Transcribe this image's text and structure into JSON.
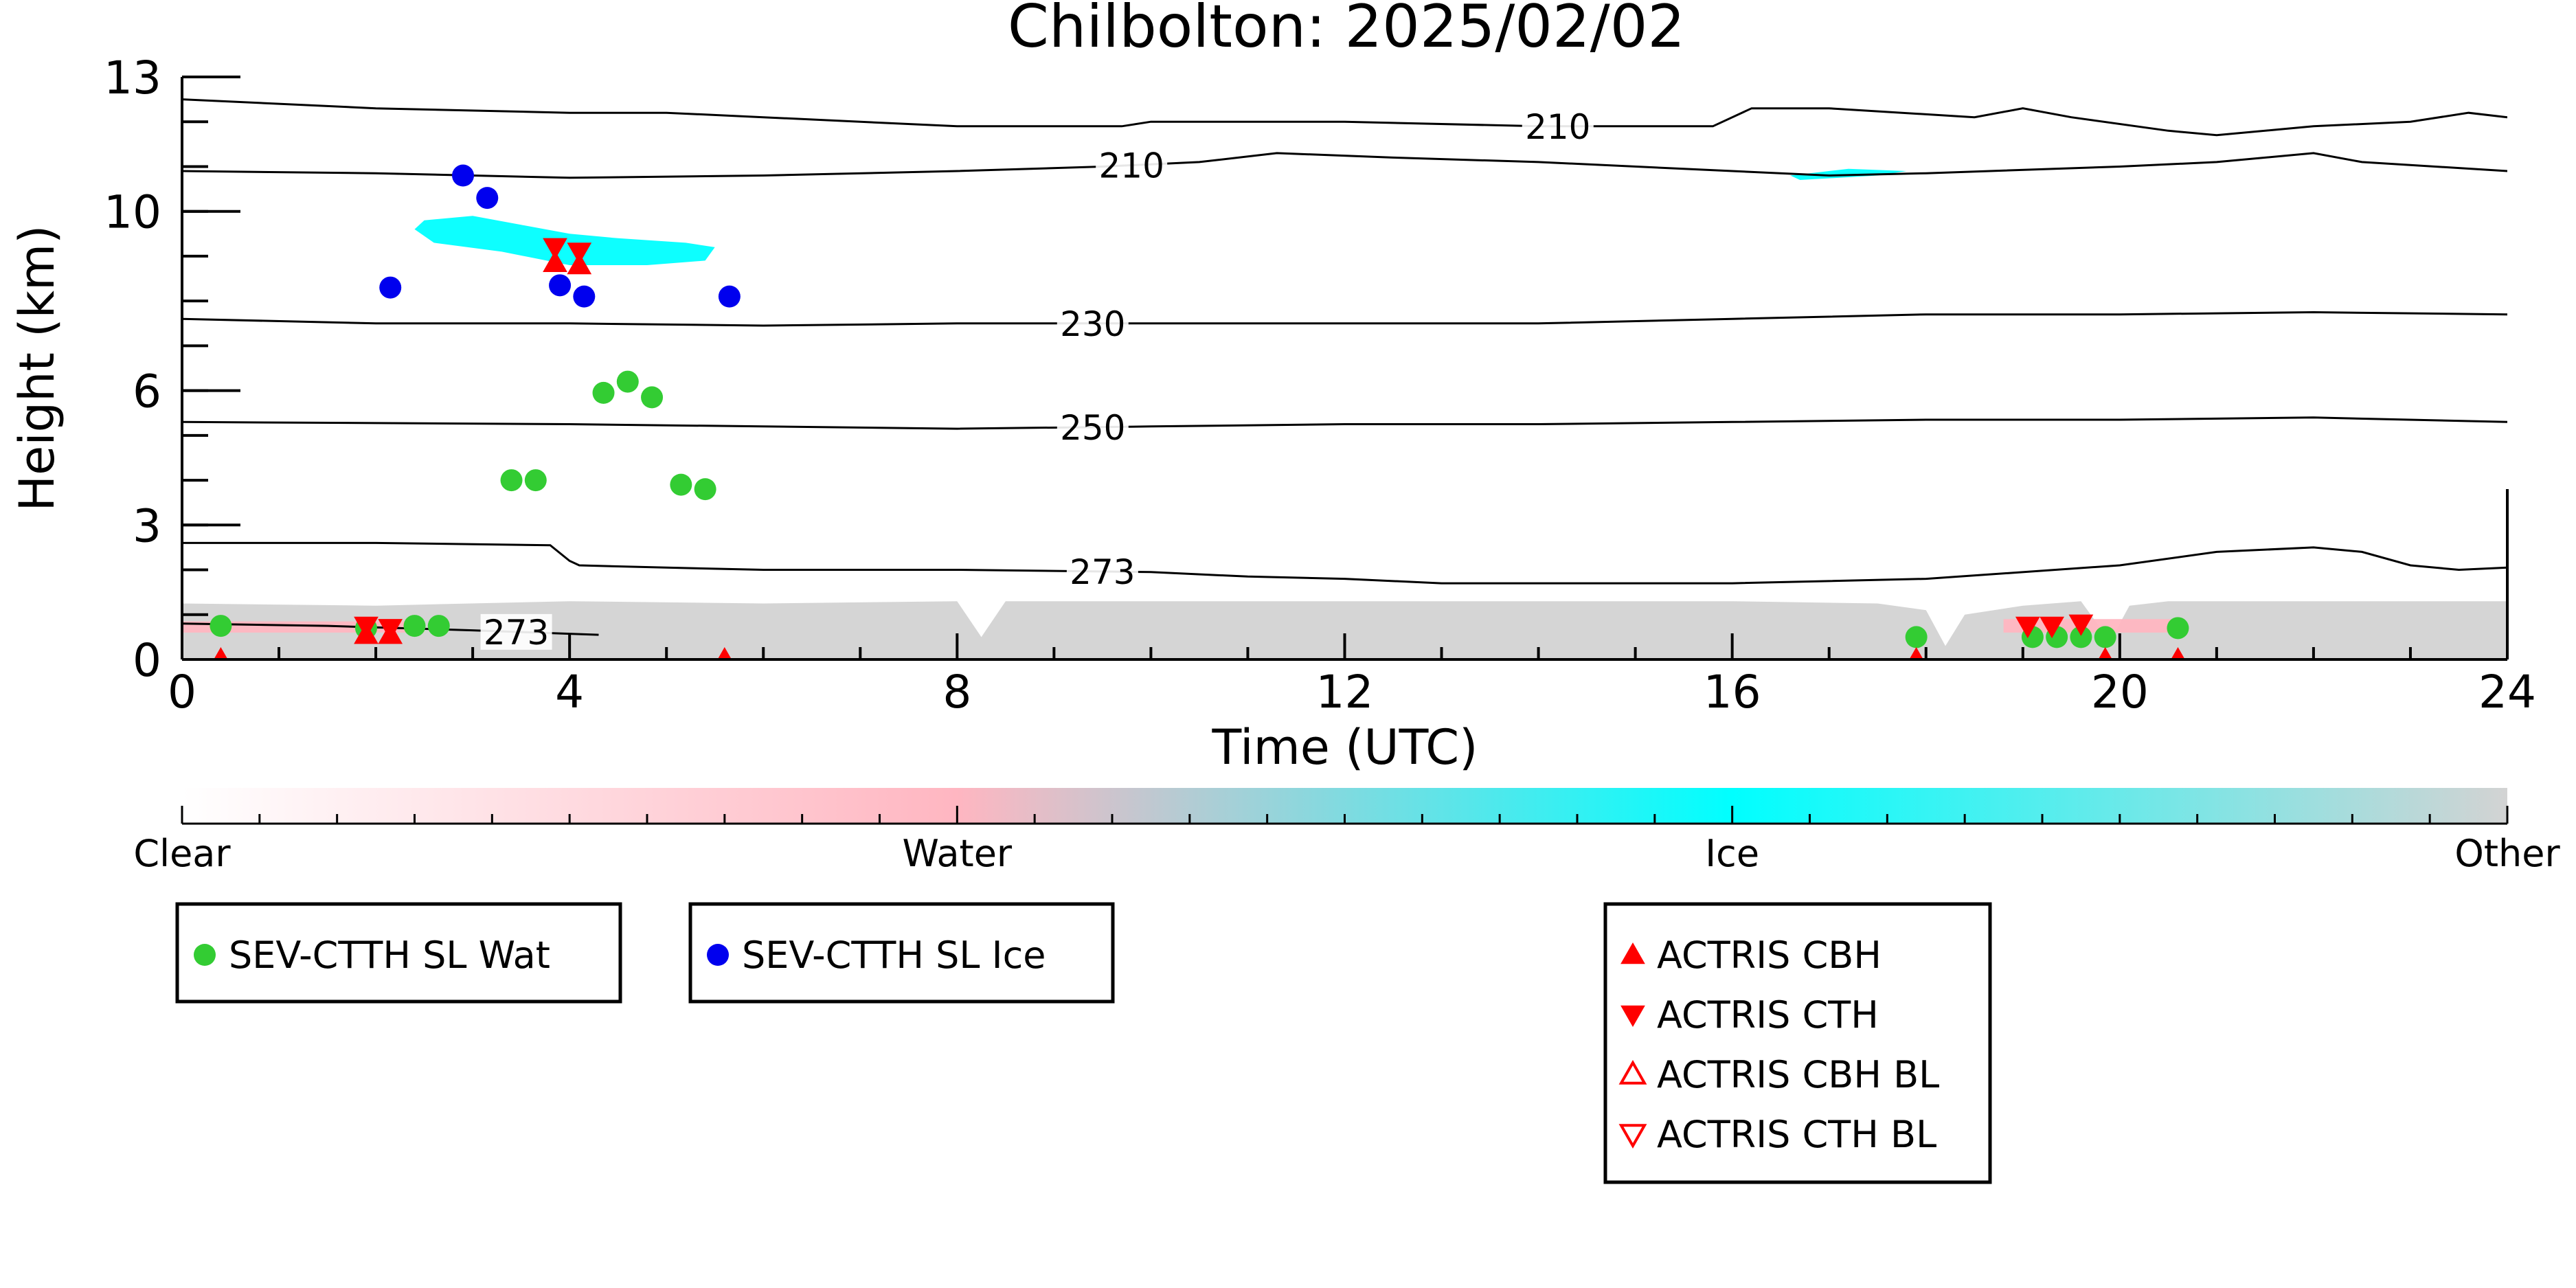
{
  "chart_data": {
    "type": "scatter",
    "title": "Chilbolton: 2025/02/02",
    "xlabel": "Time (UTC)",
    "ylabel": "Height (km)",
    "xlim": [
      0,
      24
    ],
    "ylim": [
      0,
      13
    ],
    "x_ticks": [
      "0",
      "4",
      "8",
      "12",
      "16",
      "20",
      "24"
    ],
    "y_ticks": [
      "0",
      "3",
      "6",
      "10",
      "13"
    ],
    "grid": false,
    "colorbar": {
      "labels": [
        "Clear",
        "Water",
        "Ice",
        "Other"
      ],
      "colors": [
        "#ffffff",
        "#ffb6c1",
        "#00ffff",
        "#d3d3d3"
      ]
    },
    "temperature_contours": [
      {
        "label": "210",
        "label_x": 14.2,
        "points": [
          [
            0,
            12.5
          ],
          [
            2,
            12.3
          ],
          [
            4,
            12.2
          ],
          [
            5,
            12.2
          ],
          [
            6,
            12.1
          ],
          [
            8,
            11.9
          ],
          [
            9.7,
            11.9
          ],
          [
            10,
            12.0
          ],
          [
            12,
            12.0
          ],
          [
            14,
            11.9
          ],
          [
            15.8,
            11.9
          ],
          [
            16.2,
            12.3
          ],
          [
            17,
            12.3
          ],
          [
            18.5,
            12.1
          ],
          [
            19,
            12.3
          ],
          [
            19.5,
            12.1
          ],
          [
            20.5,
            11.8
          ],
          [
            21,
            11.7
          ],
          [
            22,
            11.9
          ],
          [
            23,
            12.0
          ],
          [
            23.6,
            12.2
          ],
          [
            24,
            12.1
          ]
        ]
      },
      {
        "label": "210",
        "label_x": 9.8,
        "points": [
          [
            0,
            10.9
          ],
          [
            2,
            10.85
          ],
          [
            4,
            10.75
          ],
          [
            6,
            10.8
          ],
          [
            8,
            10.9
          ],
          [
            9.5,
            11.0
          ],
          [
            10.5,
            11.1
          ],
          [
            11.3,
            11.3
          ],
          [
            12.5,
            11.2
          ],
          [
            14,
            11.1
          ],
          [
            16,
            10.9
          ],
          [
            17,
            10.8
          ],
          [
            18,
            10.85
          ],
          [
            20,
            11.0
          ],
          [
            21,
            11.1
          ],
          [
            22,
            11.3
          ],
          [
            22.5,
            11.1
          ],
          [
            24,
            10.9
          ]
        ]
      },
      {
        "label": "230",
        "label_x": 9.4,
        "points": [
          [
            0,
            7.6
          ],
          [
            2,
            7.5
          ],
          [
            4,
            7.5
          ],
          [
            6,
            7.45
          ],
          [
            8,
            7.5
          ],
          [
            10,
            7.5
          ],
          [
            12,
            7.5
          ],
          [
            14,
            7.5
          ],
          [
            16,
            7.6
          ],
          [
            18,
            7.7
          ],
          [
            20,
            7.7
          ],
          [
            22,
            7.75
          ],
          [
            24,
            7.7
          ]
        ]
      },
      {
        "label": "250",
        "label_x": 9.4,
        "points": [
          [
            0,
            5.3
          ],
          [
            4,
            5.25
          ],
          [
            6,
            5.2
          ],
          [
            8,
            5.15
          ],
          [
            10,
            5.2
          ],
          [
            12,
            5.25
          ],
          [
            14,
            5.25
          ],
          [
            16,
            5.3
          ],
          [
            18,
            5.35
          ],
          [
            20,
            5.35
          ],
          [
            22,
            5.4
          ],
          [
            24,
            5.3
          ]
        ]
      },
      {
        "label": "273",
        "label_x": 9.5,
        "points": [
          [
            0,
            2.6
          ],
          [
            2,
            2.6
          ],
          [
            3.8,
            2.55
          ],
          [
            4.0,
            2.2
          ],
          [
            4.1,
            2.1
          ],
          [
            5,
            2.05
          ],
          [
            6,
            2.0
          ],
          [
            8,
            2.0
          ],
          [
            10,
            1.95
          ],
          [
            11,
            1.85
          ],
          [
            12,
            1.8
          ],
          [
            13,
            1.7
          ],
          [
            14,
            1.7
          ],
          [
            16,
            1.7
          ],
          [
            18,
            1.8
          ],
          [
            20,
            2.1
          ],
          [
            21,
            2.4
          ],
          [
            22,
            2.5
          ],
          [
            22.5,
            2.4
          ],
          [
            23,
            2.1
          ],
          [
            23.5,
            2.0
          ],
          [
            24,
            2.05
          ]
        ]
      },
      {
        "label": "273",
        "label_x": 3.45,
        "points": [
          [
            0,
            0.8
          ],
          [
            1.5,
            0.75
          ],
          [
            3,
            0.65
          ],
          [
            4.3,
            0.55
          ]
        ]
      }
    ],
    "cloud_regions": [
      {
        "phase": "Ice",
        "color": "#00ffff",
        "polygon": [
          [
            2.5,
            9.8
          ],
          [
            3.0,
            9.9
          ],
          [
            3.5,
            9.7
          ],
          [
            4.0,
            9.5
          ],
          [
            4.5,
            9.4
          ],
          [
            5.2,
            9.3
          ],
          [
            5.5,
            9.2
          ],
          [
            5.4,
            8.9
          ],
          [
            4.8,
            8.8
          ],
          [
            4.0,
            8.8
          ],
          [
            3.3,
            9.1
          ],
          [
            2.6,
            9.3
          ],
          [
            2.4,
            9.6
          ]
        ]
      },
      {
        "phase": "Ice",
        "color": "#00ffff",
        "polygon": [
          [
            16.6,
            10.8
          ],
          [
            17.2,
            10.95
          ],
          [
            17.8,
            10.9
          ],
          [
            17.5,
            10.8
          ],
          [
            16.7,
            10.7
          ]
        ]
      },
      {
        "phase": "Other",
        "color": "#d3d3d3",
        "polygon": [
          [
            0,
            0
          ],
          [
            0,
            1.25
          ],
          [
            2,
            1.2
          ],
          [
            4,
            1.3
          ],
          [
            6,
            1.25
          ],
          [
            8,
            1.3
          ],
          [
            8.25,
            0.5
          ],
          [
            8.5,
            1.3
          ],
          [
            10,
            1.3
          ],
          [
            12,
            1.3
          ],
          [
            14,
            1.3
          ],
          [
            16,
            1.3
          ],
          [
            17.5,
            1.25
          ],
          [
            18.0,
            1.1
          ],
          [
            18.2,
            0.3
          ],
          [
            18.4,
            1.0
          ],
          [
            19.0,
            1.2
          ],
          [
            19.6,
            1.3
          ],
          [
            19.9,
            0.4
          ],
          [
            20.1,
            1.2
          ],
          [
            20.5,
            1.3
          ],
          [
            22,
            1.3
          ],
          [
            24,
            1.3
          ],
          [
            24,
            0
          ]
        ]
      },
      {
        "phase": "Water",
        "color": "#ffb6c1",
        "polygon": [
          [
            0,
            0.6
          ],
          [
            2.5,
            0.6
          ],
          [
            2.5,
            0.85
          ],
          [
            0,
            0.85
          ]
        ]
      },
      {
        "phase": "Water",
        "color": "#ffb6c1",
        "polygon": [
          [
            18.8,
            0.6
          ],
          [
            20.6,
            0.6
          ],
          [
            20.6,
            0.9
          ],
          [
            18.8,
            0.9
          ]
        ]
      }
    ],
    "series": [
      {
        "name": "SEV-CTTH SL Wat",
        "color": "#33cc33",
        "marker": "circle",
        "points": [
          [
            0.4,
            0.75
          ],
          [
            1.9,
            0.7
          ],
          [
            2.4,
            0.75
          ],
          [
            2.65,
            0.75
          ],
          [
            3.4,
            4.0
          ],
          [
            3.65,
            4.0
          ],
          [
            4.35,
            5.95
          ],
          [
            4.6,
            6.2
          ],
          [
            4.85,
            5.85
          ],
          [
            5.15,
            3.9
          ],
          [
            5.4,
            3.8
          ],
          [
            17.9,
            0.5
          ],
          [
            19.1,
            0.5
          ],
          [
            19.35,
            0.5
          ],
          [
            19.6,
            0.5
          ],
          [
            19.85,
            0.5
          ],
          [
            20.6,
            0.7
          ]
        ]
      },
      {
        "name": "SEV-CTTH SL Ice",
        "color": "#0000ee",
        "marker": "circle",
        "points": [
          [
            2.15,
            8.3
          ],
          [
            2.9,
            10.8
          ],
          [
            3.15,
            10.3
          ],
          [
            3.9,
            8.35
          ],
          [
            4.15,
            8.1
          ],
          [
            5.65,
            8.1
          ]
        ]
      },
      {
        "name": "ACTRIS CBH",
        "color": "#ff0000",
        "marker": "triangle-up",
        "points": [
          [
            0.4,
            0.0
          ],
          [
            1.9,
            0.55
          ],
          [
            2.15,
            0.55
          ],
          [
            3.85,
            8.85
          ],
          [
            4.1,
            8.8
          ],
          [
            5.6,
            0.0
          ],
          [
            17.9,
            0.0
          ],
          [
            19.85,
            0.0
          ],
          [
            20.6,
            0.0
          ]
        ]
      },
      {
        "name": "ACTRIS CTH",
        "color": "#ff0000",
        "marker": "triangle-down",
        "points": [
          [
            1.9,
            0.75
          ],
          [
            2.15,
            0.7
          ],
          [
            3.85,
            9.2
          ],
          [
            4.1,
            9.1
          ],
          [
            19.05,
            0.75
          ],
          [
            19.3,
            0.75
          ],
          [
            19.6,
            0.8
          ]
        ]
      },
      {
        "name": "ACTRIS CBH BL",
        "color": "#ff0000",
        "marker": "triangle-up-open",
        "points": []
      },
      {
        "name": "ACTRIS CTH BL",
        "color": "#ff0000",
        "marker": "triangle-down-open",
        "points": []
      }
    ],
    "legends": [
      {
        "entries": [
          "SEV-CTTH SL Wat"
        ]
      },
      {
        "entries": [
          "SEV-CTTH SL Ice"
        ]
      },
      {
        "entries": [
          "ACTRIS CBH",
          "ACTRIS CTH",
          "ACTRIS CBH BL",
          "ACTRIS CTH BL"
        ]
      }
    ]
  }
}
